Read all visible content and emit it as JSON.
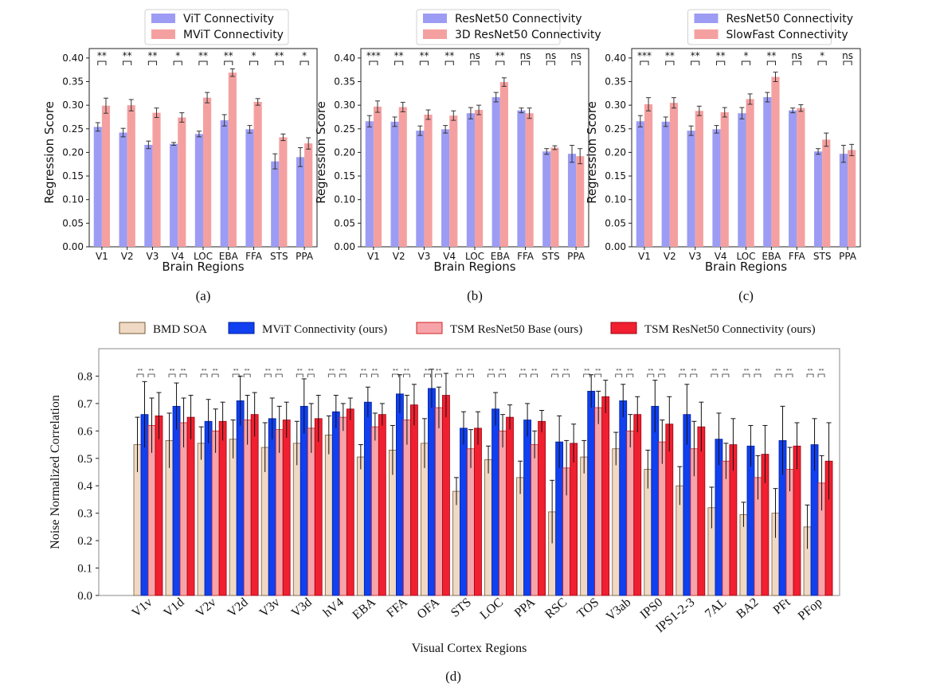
{
  "colors": {
    "vit": "#9c9cf4",
    "mvit_light": "#f5a0a0",
    "resnet50": "#9c9cf4",
    "resnet3d": "#f5a0a0",
    "slowfast": "#f5a0a0",
    "bmd": "#efd9c4",
    "bmd_edge": "#7a5a3a",
    "mvit_dark": "#1040f0",
    "tsm_base": "#f6a4aa",
    "tsm_base_edge": "#d02020",
    "tsm_conn": "#f02030",
    "tsm_conn_edge": "#a00010"
  },
  "chart_data": [
    {
      "type": "bar",
      "panel": "(a)",
      "xlabel": "Brain Regions",
      "ylabel": "Regression Score",
      "ylim": [
        0,
        0.42
      ],
      "yticks": [
        "0.00",
        "0.05",
        "0.10",
        "0.15",
        "0.20",
        "0.25",
        "0.30",
        "0.35",
        "0.40"
      ],
      "categories": [
        "V1",
        "V2",
        "V3",
        "V4",
        "LOC",
        "EBA",
        "FFA",
        "STS",
        "PPA"
      ],
      "series": [
        {
          "name": "ViT Connectivity",
          "color": "#9c9cf4",
          "values": [
            0.254,
            0.242,
            0.216,
            0.218,
            0.239,
            0.268,
            0.249,
            0.181,
            0.19
          ],
          "errors": [
            0.009,
            0.009,
            0.008,
            0.003,
            0.006,
            0.012,
            0.008,
            0.016,
            0.02
          ]
        },
        {
          "name": "MViT Connectivity",
          "color": "#f5a0a0",
          "values": [
            0.299,
            0.3,
            0.284,
            0.274,
            0.316,
            0.369,
            0.307,
            0.232,
            0.219
          ],
          "errors": [
            0.016,
            0.012,
            0.01,
            0.01,
            0.011,
            0.008,
            0.007,
            0.007,
            0.012
          ]
        }
      ],
      "significance": [
        "**",
        "**",
        "**",
        "*",
        "**",
        "**",
        "*",
        "**",
        "*"
      ],
      "legend": "top-center"
    },
    {
      "type": "bar",
      "panel": "(b)",
      "xlabel": "Brain Regions",
      "ylabel": "Regression Score",
      "ylim": [
        0,
        0.42
      ],
      "yticks": [
        "0.00",
        "0.05",
        "0.10",
        "0.15",
        "0.20",
        "0.25",
        "0.30",
        "0.35",
        "0.40"
      ],
      "categories": [
        "V1",
        "V2",
        "V3",
        "V4",
        "LOC",
        "EBA",
        "FFA",
        "STS",
        "PPA"
      ],
      "series": [
        {
          "name": "ResNet50 Connectivity",
          "color": "#9c9cf4",
          "values": [
            0.266,
            0.265,
            0.246,
            0.249,
            0.283,
            0.317,
            0.289,
            0.202,
            0.197
          ],
          "errors": [
            0.012,
            0.01,
            0.01,
            0.008,
            0.012,
            0.01,
            0.005,
            0.006,
            0.018
          ]
        },
        {
          "name": "3D ResNet50 Connectivity",
          "color": "#f5a0a0",
          "values": [
            0.297,
            0.296,
            0.28,
            0.278,
            0.29,
            0.349,
            0.283,
            0.21,
            0.192
          ],
          "errors": [
            0.012,
            0.01,
            0.01,
            0.01,
            0.01,
            0.009,
            0.011,
            0.004,
            0.016
          ]
        }
      ],
      "significance": [
        "***",
        "**",
        "**",
        "**",
        "ns",
        "**",
        "ns",
        "ns",
        "ns"
      ],
      "legend": "top-center"
    },
    {
      "type": "bar",
      "panel": "(c)",
      "xlabel": "Brain Regions",
      "ylabel": "Regression Score",
      "ylim": [
        0,
        0.42
      ],
      "yticks": [
        "0.00",
        "0.05",
        "0.10",
        "0.15",
        "0.20",
        "0.25",
        "0.30",
        "0.35",
        "0.40"
      ],
      "categories": [
        "V1",
        "V2",
        "V3",
        "V4",
        "LOC",
        "EBA",
        "FFA",
        "STS",
        "PPA"
      ],
      "series": [
        {
          "name": "ResNet50 Connectivity",
          "color": "#9c9cf4",
          "values": [
            0.266,
            0.265,
            0.246,
            0.249,
            0.283,
            0.317,
            0.289,
            0.202,
            0.197
          ],
          "errors": [
            0.012,
            0.01,
            0.01,
            0.008,
            0.012,
            0.01,
            0.005,
            0.006,
            0.018
          ]
        },
        {
          "name": "SlowFast Connectivity",
          "color": "#f5a0a0",
          "values": [
            0.302,
            0.305,
            0.288,
            0.285,
            0.313,
            0.36,
            0.294,
            0.227,
            0.205
          ],
          "errors": [
            0.014,
            0.011,
            0.01,
            0.01,
            0.011,
            0.01,
            0.007,
            0.014,
            0.012
          ]
        }
      ],
      "significance": [
        "***",
        "**",
        "**",
        "**",
        "*",
        "**",
        "ns",
        "*",
        "ns"
      ],
      "legend": "top-center"
    },
    {
      "type": "bar",
      "panel": "(d)",
      "xlabel": "Visual Cortex Regions",
      "ylabel": "Noise Normalized Correlation",
      "ylim": [
        0,
        0.9
      ],
      "yticks": [
        "0.0",
        "0.1",
        "0.2",
        "0.3",
        "0.4",
        "0.5",
        "0.6",
        "0.7",
        "0.8"
      ],
      "categories": [
        "V1v",
        "V1d",
        "V2v",
        "V2d",
        "V3v",
        "V3d",
        "hV4",
        "EBA",
        "FFA",
        "OFA",
        "STS",
        "LOC",
        "PPA",
        "RSC",
        "TOS",
        "V3ab",
        "IPS0",
        "IPS1-2-3",
        "7AL",
        "BA2",
        "PFt",
        "PFop"
      ],
      "series": [
        {
          "name": "BMD SOA",
          "color": "#efd9c4",
          "values": [
            0.55,
            0.565,
            0.555,
            0.57,
            0.54,
            0.555,
            0.585,
            0.505,
            0.53,
            0.555,
            0.38,
            0.495,
            0.43,
            0.305,
            0.505,
            0.535,
            0.46,
            0.4,
            0.32,
            0.295,
            0.3,
            0.25
          ],
          "errors": [
            0.1,
            0.1,
            0.06,
            0.07,
            0.09,
            0.08,
            0.07,
            0.045,
            0.09,
            0.09,
            0.05,
            0.05,
            0.06,
            0.115,
            0.06,
            0.06,
            0.07,
            0.07,
            0.075,
            0.045,
            0.09,
            0.08
          ]
        },
        {
          "name": "MViT Connectivity (ours)",
          "color": "#1040f0",
          "values": [
            0.66,
            0.69,
            0.635,
            0.71,
            0.645,
            0.69,
            0.67,
            0.705,
            0.735,
            0.755,
            0.61,
            0.68,
            0.64,
            0.56,
            0.745,
            0.71,
            0.69,
            0.66,
            0.57,
            0.545,
            0.565,
            0.55
          ],
          "errors": [
            0.12,
            0.085,
            0.08,
            0.09,
            0.075,
            0.1,
            0.06,
            0.055,
            0.07,
            0.07,
            0.06,
            0.06,
            0.06,
            0.095,
            0.06,
            0.06,
            0.095,
            0.11,
            0.095,
            0.075,
            0.125,
            0.095
          ]
        },
        {
          "name": "TSM ResNet50 Base (ours)",
          "color": "#f6a4aa",
          "values": [
            0.62,
            0.63,
            0.6,
            0.64,
            0.605,
            0.61,
            0.65,
            0.615,
            0.64,
            0.685,
            0.535,
            0.6,
            0.55,
            0.465,
            0.685,
            0.6,
            0.56,
            0.535,
            0.49,
            0.43,
            0.46,
            0.41
          ],
          "errors": [
            0.1,
            0.09,
            0.08,
            0.09,
            0.085,
            0.09,
            0.05,
            0.05,
            0.09,
            0.075,
            0.07,
            0.06,
            0.05,
            0.1,
            0.06,
            0.06,
            0.08,
            0.1,
            0.065,
            0.08,
            0.08,
            0.1
          ]
        },
        {
          "name": "TSM ResNet50 Connectivity (ours)",
          "color": "#f02030",
          "values": [
            0.655,
            0.65,
            0.635,
            0.66,
            0.64,
            0.645,
            0.68,
            0.66,
            0.695,
            0.73,
            0.61,
            0.65,
            0.635,
            0.555,
            0.725,
            0.66,
            0.625,
            0.615,
            0.55,
            0.515,
            0.545,
            0.49
          ],
          "errors": [
            0.085,
            0.08,
            0.07,
            0.08,
            0.065,
            0.085,
            0.04,
            0.04,
            0.075,
            0.08,
            0.06,
            0.045,
            0.04,
            0.07,
            0.06,
            0.065,
            0.1,
            0.09,
            0.095,
            0.105,
            0.085,
            0.14
          ]
        }
      ],
      "legend": "top",
      "significance_marks": [
        "**",
        "**"
      ]
    }
  ]
}
